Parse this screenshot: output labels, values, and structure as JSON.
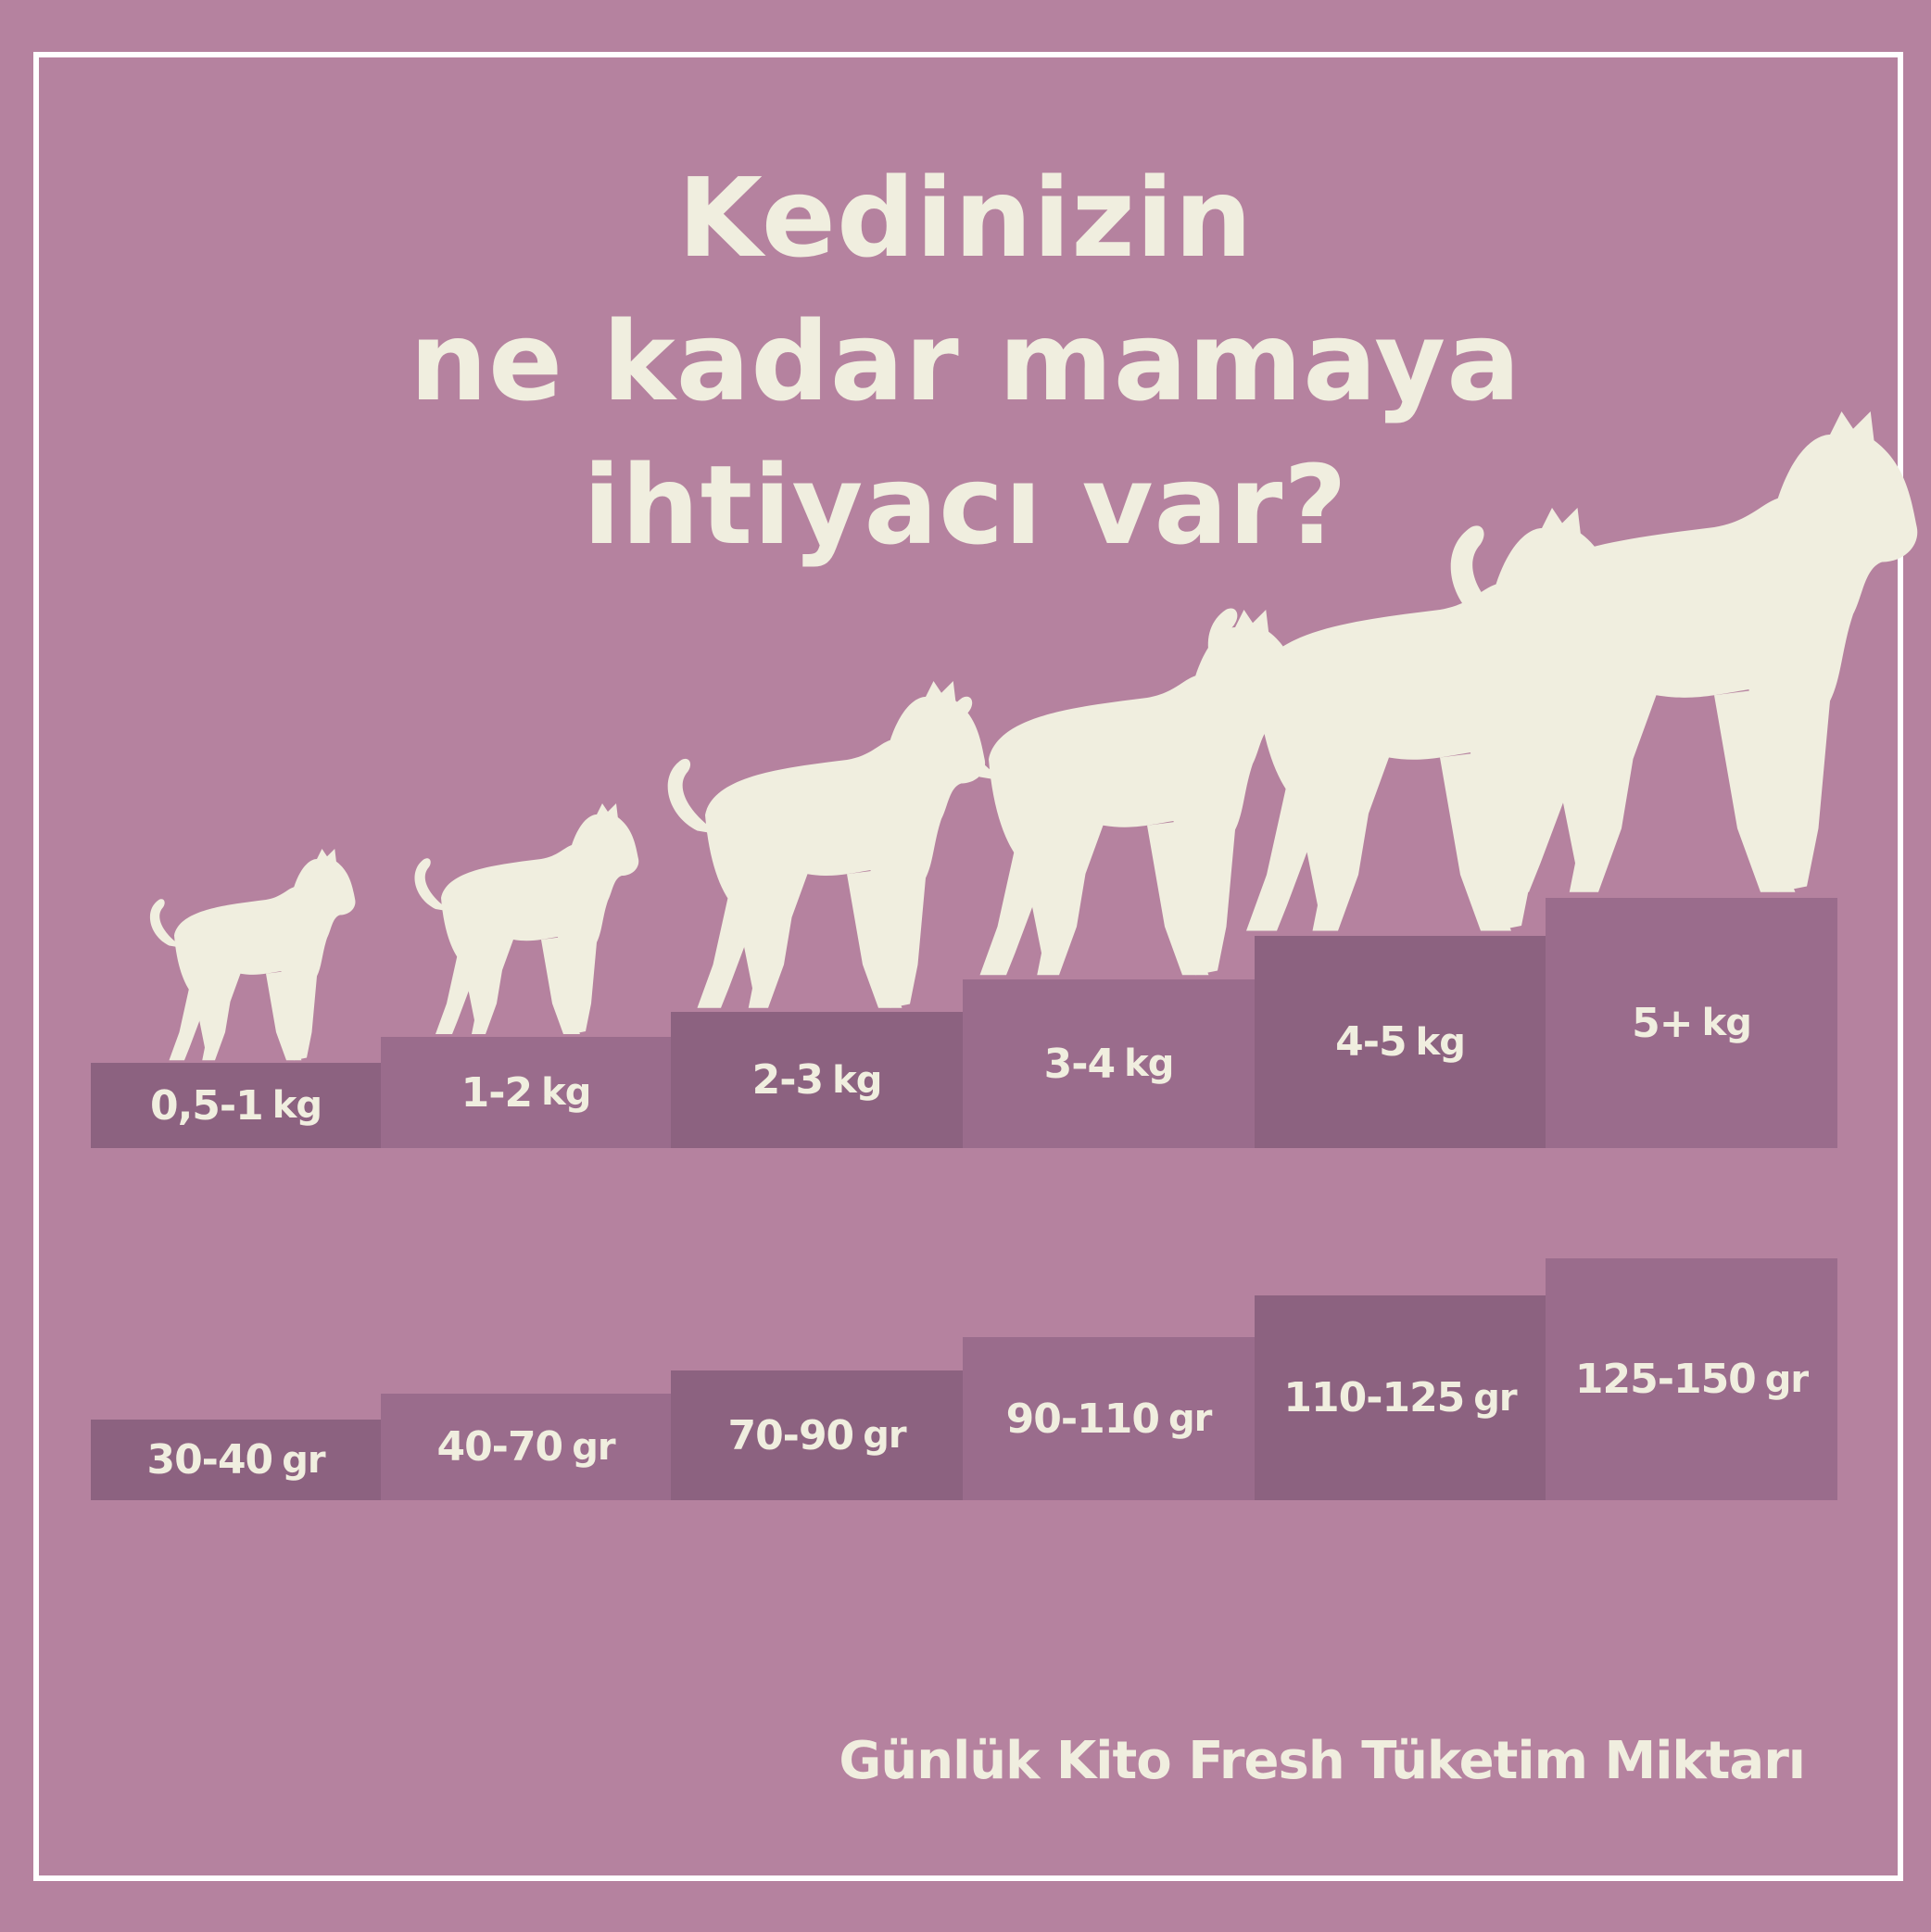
{
  "title": {
    "lines": [
      "Kedinizin",
      "ne kadar mamaya",
      "ihtiyacı var?"
    ]
  },
  "weights": [
    {
      "value": "0,5-1",
      "unit": "kg"
    },
    {
      "value": "1-2",
      "unit": "kg"
    },
    {
      "value": "2-3",
      "unit": "kg"
    },
    {
      "value": "3-4",
      "unit": "kg"
    },
    {
      "value": "4-5",
      "unit": "kg"
    },
    {
      "value": "5+",
      "unit": "kg"
    }
  ],
  "portions": [
    {
      "value": "30-40",
      "unit": "gr"
    },
    {
      "value": "40-70",
      "unit": "gr"
    },
    {
      "value": "70-90",
      "unit": "gr"
    },
    {
      "value": "90-110",
      "unit": "gr"
    },
    {
      "value": "110-125",
      "unit": "gr"
    },
    {
      "value": "125-150",
      "unit": "gr"
    }
  ],
  "footer": "Günlük Kito Fresh Tüketim Miktarı",
  "colors": {
    "background": "#b5829f",
    "block_dark": "#8c6280",
    "block_mid": "#9a6c8c",
    "text": "#f0eedf",
    "frame": "#ffffff"
  },
  "icons": [
    "cat-silhouette-icon"
  ]
}
